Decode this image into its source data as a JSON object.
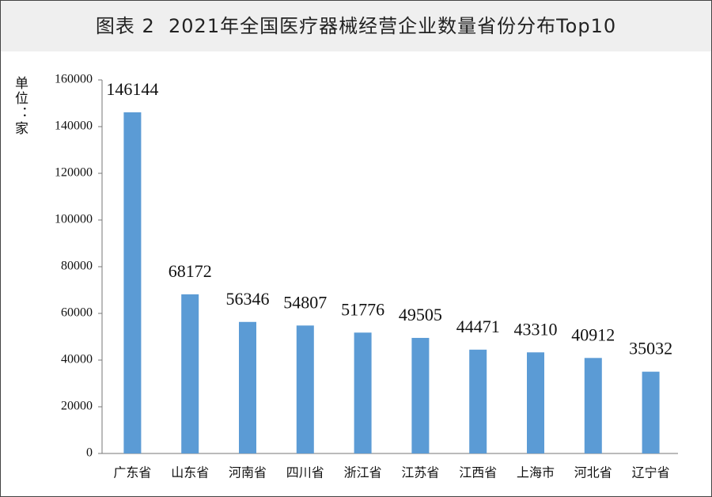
{
  "chart_data": {
    "type": "bar",
    "title": "图表 2  2021年全国医疗器械经营企业数量省份分布Top10",
    "y_label": "单位：家",
    "categories": [
      "广东省",
      "山东省",
      "河南省",
      "四川省",
      "浙江省",
      "江苏省",
      "江西省",
      "上海市",
      "河北省",
      "辽宁省"
    ],
    "values": [
      146144,
      68172,
      56346,
      54807,
      51776,
      49505,
      44471,
      43310,
      40912,
      35032
    ],
    "color": "#5b9bd5",
    "ylim": [
      0,
      160000
    ],
    "yticks": [
      0,
      20000,
      40000,
      60000,
      80000,
      100000,
      120000,
      140000,
      160000
    ],
    "grid": false
  }
}
